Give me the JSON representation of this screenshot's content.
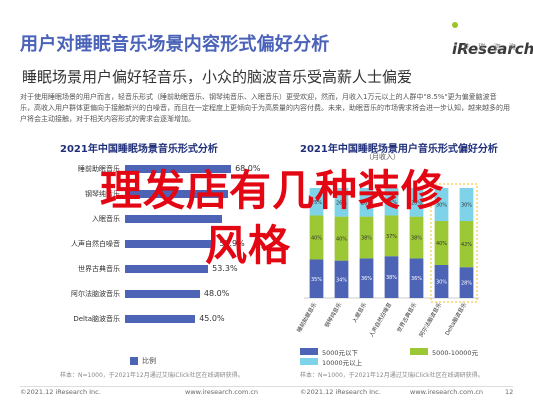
{
  "header": {
    "title": "用户对睡眠音乐场景内容形式偏好分析",
    "subtitle": "睡眠场景用户偏好轻音乐，小众的脑波音乐受高薪人士偏爱",
    "brand": "iResearch",
    "brand_sub": "艾 瑞 咨 询"
  },
  "paragraph": "对于使用睡眠场景的用户而言，轻音乐形式（睡前助眠音乐、钢琴纯音乐、入眠音乐）更受欢迎，然而，月收入1万元以上的人群中\"8.5%\"更为偏爱脑波音乐，高收入用户群体更偏向于接触新兴的白噪音，而且在一定程度上更倾向于为高质量的内容付费。未来，助眠音乐的市场需求将会进一步认知，越来越多的用户将会主动接触，对于相关内容形式的需求会逐渐增加。",
  "overlay": {
    "line1": "理发店有几种装修",
    "line2": "风格"
  },
  "left_chart": {
    "title": "2021年中国睡眠场景音乐形式分析",
    "legend": "比例",
    "note": "样本：N=1000，于2021年12月通过艾瑞iClick社区在线调研获得。"
  },
  "right_chart": {
    "title": "2021年中国睡眠场景用户音乐形式偏好分析",
    "subtitle": "（月收入）",
    "note": "样本：N=1000，于2021年12月通过艾瑞iClick社区在线调研获得。",
    "legends": [
      "5000元以下",
      "5000-10000元",
      "10000元以上"
    ]
  },
  "footer": {
    "left": "©2021.12 iResearch Inc.",
    "center": "www.iresearch.com.cn",
    "right": "©2021.12 iResearch Inc.",
    "center2": "www.iresearch.com.cn",
    "page": "12"
  },
  "chart_data": [
    {
      "type": "bar",
      "orientation": "horizontal",
      "title": "2021年中国睡眠场景音乐形式分析",
      "categories": [
        "睡前助眠音乐",
        "钢琴纯音乐",
        "入眠音乐",
        "人声自然白噪音",
        "世界古典音乐",
        "阿尔法脑波音乐",
        "Delta脑波音乐"
      ],
      "series": [
        {
          "name": "比例",
          "values": [
            68.0,
            66.0,
            62.0,
            57.9,
            53.3,
            48.0,
            45.0
          ]
        }
      ],
      "value_labels": [
        "68.0%",
        "",
        "",
        "57.9%",
        "53.3%",
        "48.0%",
        "45.0%"
      ]
    },
    {
      "type": "bar",
      "orientation": "vertical",
      "stacked": true,
      "title": "2021年中国睡眠场景用户音乐形式偏好分析",
      "categories": [
        "睡前助眠音乐",
        "钢琴纯音乐",
        "入眠音乐",
        "人声自然白噪音",
        "世界古典音乐",
        "阿尔法脑波音乐",
        "Delta脑波音乐"
      ],
      "series": [
        {
          "name": "5000元以下",
          "values": [
            35,
            34,
            36,
            38,
            36,
            30,
            28
          ],
          "color": "#4c63b6"
        },
        {
          "name": "5000-10000元",
          "values": [
            40,
            40,
            38,
            37,
            38,
            40,
            42
          ],
          "color": "#9cc835"
        },
        {
          "name": "10000元以上",
          "values": [
            25,
            26,
            26,
            25,
            26,
            30,
            30
          ],
          "color": "#7fd3e8"
        }
      ],
      "ylim": [
        0,
        100
      ]
    }
  ]
}
